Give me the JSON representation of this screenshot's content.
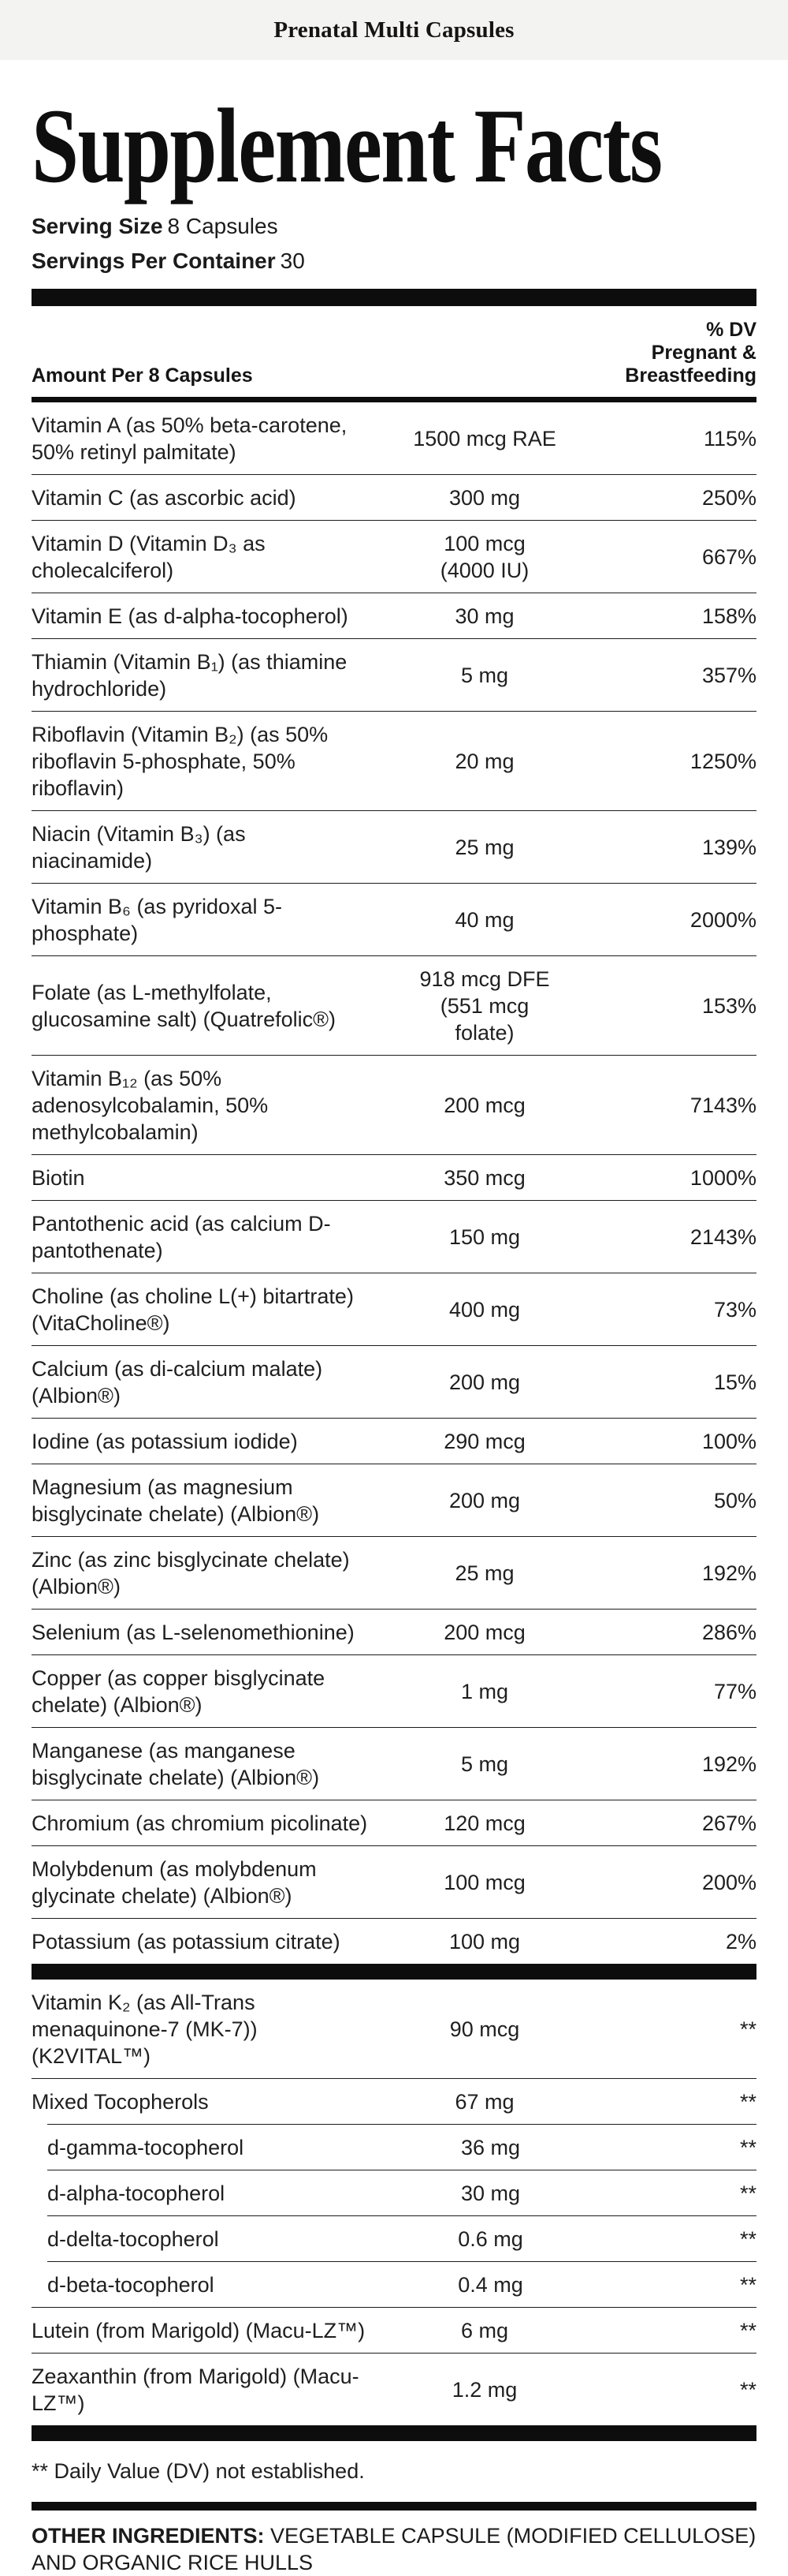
{
  "banner": {
    "product_title": "Prenatal Multi Capsules"
  },
  "label": {
    "heading": "Supplement Facts",
    "serving_size_label": "Serving Size",
    "serving_size_value": "8 Capsules",
    "servings_per_container_label": "Servings Per Container",
    "servings_per_container_value": "30"
  },
  "table": {
    "amount_header": "Amount Per 8 Capsules",
    "dv_header": "% DV\nPregnant &\nBreastfeeding",
    "main_rows": [
      {
        "name": "Vitamin A (as 50% beta-carotene, 50% retinyl palmitate)",
        "amount": "1500 mcg RAE",
        "dv": "115%"
      },
      {
        "name": "Vitamin C (as ascorbic acid)",
        "amount": "300 mg",
        "dv": "250%"
      },
      {
        "name": "Vitamin D (Vitamin D₃ as cholecalciferol)",
        "amount": "100 mcg\n(4000 IU)",
        "dv": "667%"
      },
      {
        "name": "Vitamin E (as d-alpha-tocopherol)",
        "amount": "30 mg",
        "dv": "158%"
      },
      {
        "name": "Thiamin (Vitamin B₁) (as thiamine hydrochloride)",
        "amount": "5 mg",
        "dv": "357%"
      },
      {
        "name": "Riboflavin (Vitamin B₂) (as 50% riboflavin 5-phosphate, 50% riboflavin)",
        "amount": "20 mg",
        "dv": "1250%"
      },
      {
        "name": "Niacin (Vitamin B₃) (as niacinamide)",
        "amount": "25 mg",
        "dv": "139%"
      },
      {
        "name": "Vitamin B₆ (as pyridoxal 5-phosphate)",
        "amount": "40 mg",
        "dv": "2000%"
      },
      {
        "name": "Folate (as L-methylfolate, glucosamine salt) (Quatrefolic®)",
        "amount": "918 mcg DFE\n(551 mcg\nfolate)",
        "dv": "153%"
      },
      {
        "name": "Vitamin B₁₂ (as 50% adenosylcobalamin, 50% methylcobalamin)",
        "amount": "200 mcg",
        "dv": "7143%"
      },
      {
        "name": "Biotin",
        "amount": "350 mcg",
        "dv": "1000%"
      },
      {
        "name": "Pantothenic acid (as calcium D-pantothenate)",
        "amount": "150 mg",
        "dv": "2143%"
      },
      {
        "name": "Choline (as choline L(+) bitartrate) (VitaCholine®)",
        "amount": "400 mg",
        "dv": "73%"
      },
      {
        "name": "Calcium (as di-calcium malate) (Albion®)",
        "amount": "200 mg",
        "dv": "15%"
      },
      {
        "name": "Iodine (as potassium iodide)",
        "amount": "290 mcg",
        "dv": "100%"
      },
      {
        "name": "Magnesium (as magnesium bisglycinate chelate) (Albion®)",
        "amount": "200 mg",
        "dv": "50%"
      },
      {
        "name": "Zinc (as zinc bisglycinate chelate) (Albion®)",
        "amount": "25 mg",
        "dv": "192%"
      },
      {
        "name": "Selenium (as L-selenomethionine)",
        "amount": "200 mcg",
        "dv": "286%"
      },
      {
        "name": "Copper (as copper bisglycinate chelate) (Albion®)",
        "amount": "1 mg",
        "dv": "77%"
      },
      {
        "name": "Manganese (as manganese bisglycinate chelate) (Albion®)",
        "amount": "5 mg",
        "dv": "192%"
      },
      {
        "name": "Chromium (as chromium picolinate)",
        "amount": "120 mcg",
        "dv": "267%"
      },
      {
        "name": "Molybdenum (as molybdenum glycinate chelate) (Albion®)",
        "amount": "100 mcg",
        "dv": "200%"
      },
      {
        "name": "Potassium (as potassium citrate)",
        "amount": "100 mg",
        "dv": "2%"
      }
    ],
    "secondary_rows": [
      {
        "name": "Vitamin K₂ (as All-Trans menaquinone-7 (MK-7)) (K2VITAL™)",
        "amount": "90 mcg",
        "dv": "**"
      },
      {
        "name": "Mixed Tocopherols",
        "amount": "67 mg",
        "dv": "**"
      },
      {
        "name": "d-gamma-tocopherol",
        "amount": "36 mg",
        "dv": "**",
        "indent": true
      },
      {
        "name": "d-alpha-tocopherol",
        "amount": "30 mg",
        "dv": "**",
        "indent": true
      },
      {
        "name": "d-delta-tocopherol",
        "amount": "0.6 mg",
        "dv": "**",
        "indent": true
      },
      {
        "name": "d-beta-tocopherol",
        "amount": "0.4 mg",
        "dv": "**",
        "indent": true
      },
      {
        "name": "Lutein (from Marigold) (Macu-LZ™)",
        "amount": "6 mg",
        "dv": "**"
      },
      {
        "name": "Zeaxanthin (from Marigold) (Macu-LZ™)",
        "amount": "1.2 mg",
        "dv": "**"
      }
    ],
    "footnote": "** Daily Value (DV) not established."
  },
  "other_ingredients": {
    "label": "OTHER INGREDIENTS:",
    "value": "VEGETABLE CAPSULE (MODIFIED CELLULOSE) AND ORGANIC RICE HULLS"
  },
  "colors": {
    "text": "#1f1f1f",
    "bar": "#0d0d0d",
    "banner_bg": "#f3f3f1"
  }
}
